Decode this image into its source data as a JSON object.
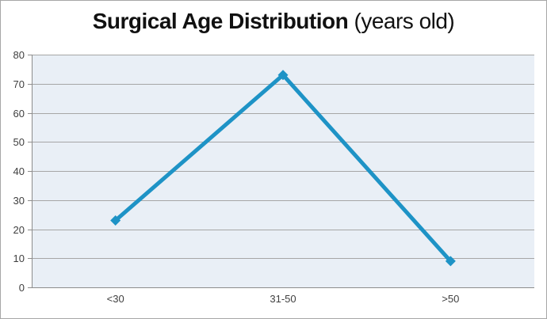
{
  "title": {
    "main": "Surgical Age Distribution",
    "suffix": " (years old)"
  },
  "chart_data": {
    "type": "line",
    "title": "Surgical Age Distribution (years old)",
    "categories": [
      "<30",
      "31-50",
      ">50"
    ],
    "values": [
      23,
      73,
      9
    ],
    "xlabel": "",
    "ylabel": "",
    "ylim": [
      0,
      80
    ],
    "ytick_step": 10,
    "yticks": [
      0,
      10,
      20,
      30,
      40,
      50,
      60,
      70,
      80
    ],
    "grid": true,
    "legend": false,
    "marker": "diamond",
    "colors": {
      "line": "#1e93c6",
      "marker": "#1e93c6",
      "plot_background": "#e9eff6",
      "gridline": "#a6a6a6",
      "axis": "#8c8c8c",
      "tick_label": "#3f3f3f",
      "title": "#111111",
      "border": "#a6a6a6"
    }
  }
}
